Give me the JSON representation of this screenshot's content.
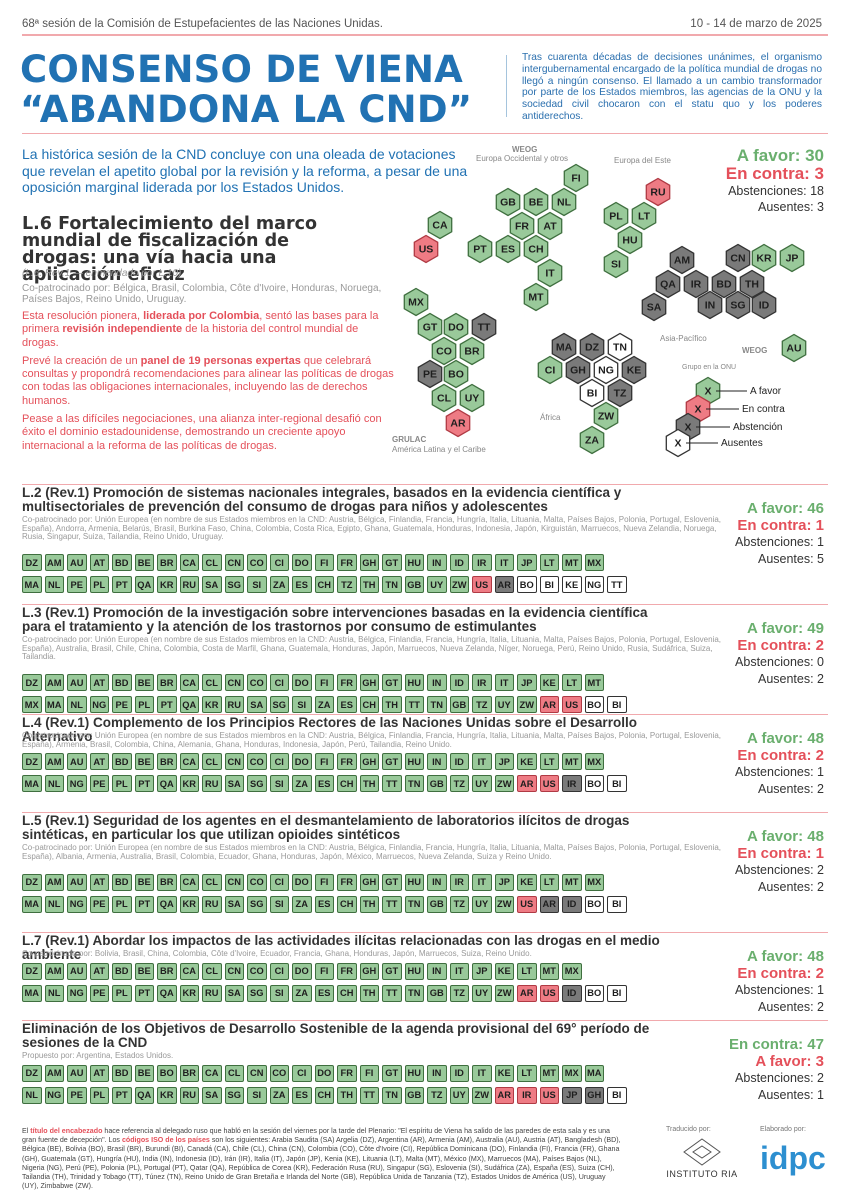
{
  "header": {
    "session": "68ª sesión de la Comisión de Estupefacientes de las Naciones Unidas.",
    "dates": "10 - 14 de marzo de 2025",
    "title_line1": "CONSENSO DE VIENA",
    "title_line2": "“ABANDONA LA CND”",
    "intro": "Tras cuarenta décadas de decisiones unánimes, el organismo intergubernamental encargado de la política mundial de drogas no llegó a ningún consenso. El llamado a un cambio transformador por parte de los Estados miembros, las agencias de la ONU y la sociedad civil chocaron con el statu quo y los poderes antiderechos."
  },
  "lead": "La histórica sesión de la CND concluye con una oleada de votaciones que revelan el apetito global por la revisión y la reforma, a pesar de una oposición marginal liderada por los Estados Unidos.",
  "l6": {
    "title": "L.6 Fortalecimiento del marco mundial de fiscalización de drogas: una vía hacia una aplicación eficaz",
    "ref": "(L.6. Rev.1 — enmendado por L.10)",
    "cosponsors": "Co-patrocinado por: Bélgica, Brasil, Colombia, Côte d'Ivoire, Honduras, Noruega, Países Bajos, Reino Unido, Uruguay.",
    "p1a": "Esta resolución pionera, ",
    "p1b": "liderada por Colombia",
    "p1c": ", sentó las bases para la primera ",
    "p1d": "revisión independiente",
    "p1e": " de la historia del control mundial de drogas.",
    "p2a": "Prevé la creación de un ",
    "p2b": "panel de 19 personas expertas",
    "p2c": " que celebrará consultas y propondrá recomendaciones para alinear las políticas de drogas con todas las obligaciones internacionales, incluyendo las de derechos humanos.",
    "p3": "Pease a las difíciles negociaciones, una alianza inter-regional desafió con éxito el dominio estadounidense, demostrando un creciente apoyo internacional a la reforma de las políticas de drogas.",
    "favor": "A favor: 30",
    "contra": "En contra: 3",
    "abst": "Abstenciones: 18",
    "aus": "Ausentes: 3"
  },
  "map": {
    "weog": "WEOG",
    "weog_sub": "Europa Occidental y otros",
    "este": "Europa del Este",
    "asia": "Asia-Pacífico",
    "africa": "África",
    "grulac": "GRULAC",
    "grulac_sub": "América Latina y el Caribe",
    "weog2": "WEOG",
    "legend_title": "Grupo en la ONU",
    "leg_favor": "A favor",
    "leg_contra": "En contra",
    "leg_abst": "Abstención",
    "leg_aus": "Ausentes",
    "mark": "X"
  },
  "sections": [
    {
      "title": "L.2 (Rev.1) Promoción de sistemas nacionales integrales, basados en la evidencia científica y multisectoriales de prevención del consumo de drogas para niños y adolescentes",
      "co": "Co-patrocinado por: Unión Europea (en nombre de sus Estados miembros en la CND: Austria, Bélgica, Finlandia, Francia, Hungría, Italia, Lituania, Malta, Países Bajos, Polonia, Portugal, Eslovenia, España), Andorra, Armenia, Belarús, Brasil, Burkina Faso, China, Colombia, Costa Rica, Egipto, Ghana, Guatemala, Honduras, Indonesia, Japón, Kirguistán, Marruecos, Nueva Zelandia, Noruega, Rusia, Singapur, Suiza, Tailandia, Reino Unido, Uruguay.",
      "favor": "A favor: 46",
      "contra": "En contra: 1",
      "abst": "Abstenciones: 1",
      "aus": "Ausentes: 5"
    },
    {
      "title": "L.3 (Rev.1) Promoción de la investigación sobre intervenciones basadas en la evidencia científica para el tratamiento y la atención de los trastornos por consumo de estimulantes",
      "co": "Co-patrocinado por: Unión Europea (en nombre de sus Estados miembros en la CND: Austria, Bélgica, Finlandia, Francia, Hungría, Italia, Lituania, Malta, Países Bajos, Polonia, Portugal, Eslovenia, España), Australia, Brasil, Chile, China, Colombia, Costa de Marfil, Ghana, Guatemala, Honduras, Japón, Marruecos, Nueva Zelanda, Níger, Noruega, Perú, Reino Unido, Rusia, Sudáfrica, Suiza, Tailandia.",
      "favor": "A favor: 49",
      "contra": "En contra: 2",
      "abst": "Abstenciones: 0",
      "aus": "Ausentes: 2"
    },
    {
      "title": "L.4 (Rev.1) Complemento de los Principios Rectores de las Naciones Unidas sobre el Desarrollo Alternativo",
      "co": "Co-patrocinado por: Unión Europea (en nombre de sus Estados miembros en la CND: Austria, Bélgica, Finlandia, Francia, Hungría, Italia, Lituania, Malta, Países Bajos, Polonia, Portugal, Eslovenia, España), Armenia, Brasil, Colombia, China, Alemania, Ghana, Honduras, Indonesia, Japón, Perú, Tailandia, Reino Unido.",
      "favor": "A favor: 48",
      "contra": "En contra: 2",
      "abst": "Abstenciones: 1",
      "aus": "Ausentes: 2"
    },
    {
      "title": "L.5 (Rev.1) Seguridad de los agentes en el desmantelamiento de laboratorios ilícitos de drogas sintéticas, en particular los que utilizan opioides sintéticos",
      "co": "Co-patrocinado por: Unión Europea (en nombre de sus Estados miembros en la CND: Austria, Bélgica, Finlandia, Francia, Hungría, Italia, Lituania, Malta, Países Bajos, Polonia, Portugal, Eslovenia, España), Albania, Armenia, Australia, Brasil, Colombia, Ecuador, Ghana, Honduras, Japón, México, Marruecos, Nueva Zelanda, Suiza y Reino Unido.",
      "favor": "A favor: 48",
      "contra": "En contra: 1",
      "abst": "Abstenciones: 2",
      "aus": "Ausentes: 2"
    },
    {
      "title": "L.7 (Rev.1) Abordar los impactos de las actividades ilícitas relacionadas con las drogas en el medio ambiente",
      "co": "Co-patrocinado por: Bolivia, Brasil, China, Colombia, Côte d'Ivoire, Ecuador, Francia, Ghana, Honduras, Japón, Marruecos, Suiza, Reino Unido.",
      "favor": "A favor: 48",
      "contra": "En contra: 2",
      "abst": "Abstenciones: 1",
      "aus": "Ausentes: 2"
    },
    {
      "title": "Eliminación de los Objetivos de Desarrollo Sostenible de la agenda provisional del 69° período de sesiones de la CND",
      "co": "Propuesto por: Argentina, Estados Unidos.",
      "favor": "En contra: 47",
      "contra": "A favor: 3",
      "abst": "Abstenciones: 2",
      "aus": "Ausentes: 1"
    }
  ],
  "footer": {
    "t1": "El ",
    "t2": "título del encabezado",
    "t3": " hace referencia al delegado ruso que habló en la sesión del viernes por la tarde del Plenario: \"El espíritu de Viena ha salido de las paredes de esta sala y es una gran fuente de decepción\". Los ",
    "t4": "códigos ISO de los países",
    "t5": " son los siguientes: Arabia Saudita (SA) Argelia (DZ), Argentina (AR), Armenia (AM), Australia (AU), Austria (AT), Bangladesh (BD), Bélgica (BE), Bolivia (BO), Brasil (BR), Burundi (BI), Canadá (CA), Chile (CL), China (CN), Colombia (CO), Côte d'Ivoire (CI), República Dominicana (DO), Finlandia (FI), Francia (FR), Ghana (GH), Guatemala (GT), Hungría (HU), India (IN), Indonesia (ID), Irán (IR), Italia (IT), Japón (JP), Kenia (KE), Lituania (LT), Malta (MT), México (MX), Marruecos (MA), Países Bajos (NL), Nigeria (NG), Perú (PE), Polonia (PL), Portugal (PT), Qatar (QA), República de Corea (KR), Federación Rusa (RU), Singapur (SG), Eslovenia (SI), Sudáfrica (ZA), España (ES), Suiza (CH), Tailandia (TH), Trinidad y Tobago (TT), Túnez (TN), Reino Unido de Gran Bretaña e Irlanda del Norte (GB), República Unida de Tanzania (TZ), Estados Unidos de América (US), Uruguay (UY), Zimbabwe (ZW).",
    "tr": "Traducido por:",
    "ria": "INSTITUTO RIA",
    "el": "Elaborado por:",
    "idpc": "idpc",
    "idpc_sub": "International Drug Policy Consortium"
  }
}
